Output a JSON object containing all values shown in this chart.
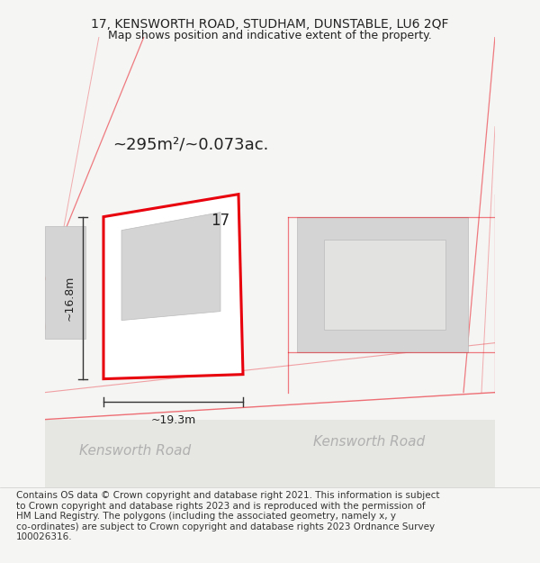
{
  "title_line1": "17, KENSWORTH ROAD, STUDHAM, DUNSTABLE, LU6 2QF",
  "title_line2": "Map shows position and indicative extent of the property.",
  "area_label": "~295m²/~0.073ac.",
  "property_number": "17",
  "dim_height": "~16.8m",
  "dim_width": "~19.3m",
  "road_label1": "Kensworth Road",
  "road_label2": "Kensworth Road",
  "footer_lines": [
    "Contains OS data © Crown copyright and database right 2021. This information is subject",
    "to Crown copyright and database rights 2023 and is reproduced with the permission of",
    "HM Land Registry. The polygons (including the associated geometry, namely x, y",
    "co-ordinates) are subject to Crown copyright and database rights 2023 Ordnance Survey",
    "100026316."
  ],
  "bg_color": "#f5f5f3",
  "map_bg_color": "#ffffff",
  "plot_outline_color": "#e8000d",
  "road_line_color": "#e8000d",
  "building_fill": "#d4d4d4",
  "building_edge": "#bbbbbb",
  "dim_line_color": "#333333",
  "road_text_color": "#b0b0b0",
  "title_fontsize": 10,
  "subtitle_fontsize": 9,
  "area_fontsize": 13,
  "number_fontsize": 12,
  "dim_fontsize": 9,
  "road_fontsize": 11,
  "copyright_fontsize": 7.5
}
